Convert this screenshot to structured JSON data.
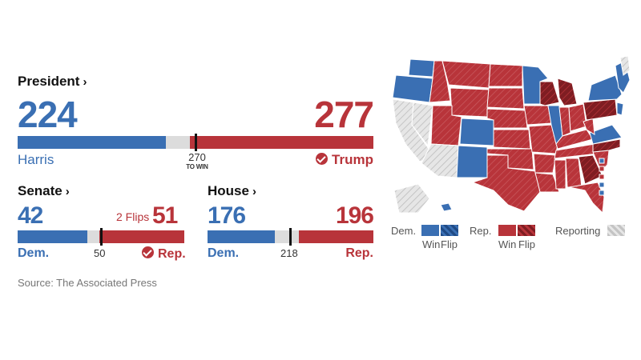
{
  "colors": {
    "dem": "#3a6fb3",
    "rep": "#b8343a",
    "undecided": "#dcdcdc",
    "dem_flip": "#1f4a85",
    "rep_flip": "#7f1d22",
    "reporting": "#d6d6d6"
  },
  "president": {
    "title": "President",
    "dem_count": "224",
    "rep_count": "277",
    "dem_name": "Harris",
    "rep_name": "Trump",
    "threshold_label": "270",
    "threshold_sub": "TO WIN",
    "winner": "rep",
    "winner_icon": "check-circle-icon"
  },
  "senate": {
    "title": "Senate",
    "dem_count": "42",
    "rep_count": "51",
    "flips_label": "2 Flips",
    "dem_label": "Dem.",
    "rep_label": "Rep.",
    "threshold_label": "50",
    "winner": "rep",
    "winner_icon": "check-circle-icon"
  },
  "house": {
    "title": "House",
    "dem_count": "176",
    "rep_count": "196",
    "dem_label": "Dem.",
    "rep_label": "Rep.",
    "threshold_label": "218"
  },
  "source": "Source: The Associated Press",
  "map_legend": {
    "dem_label": "Dem.",
    "rep_label": "Rep.",
    "reporting_label": "Reporting",
    "win_label": "Win",
    "flip_label": "Flip"
  },
  "chart_data": [
    {
      "type": "bar",
      "title": "President",
      "total": 538,
      "threshold": 270,
      "series": [
        {
          "name": "Harris",
          "values": [
            224
          ]
        },
        {
          "name": "Trump",
          "values": [
            277
          ]
        }
      ]
    },
    {
      "type": "bar",
      "title": "Senate",
      "total": 100,
      "threshold": 50,
      "series": [
        {
          "name": "Dem.",
          "values": [
            42
          ]
        },
        {
          "name": "Rep.",
          "values": [
            51
          ]
        }
      ],
      "annotations": [
        "2 Flips"
      ]
    },
    {
      "type": "bar",
      "title": "House",
      "total": 435,
      "threshold": 218,
      "series": [
        {
          "name": "Dem.",
          "values": [
            176
          ]
        },
        {
          "name": "Rep.",
          "values": [
            196
          ]
        }
      ]
    }
  ]
}
